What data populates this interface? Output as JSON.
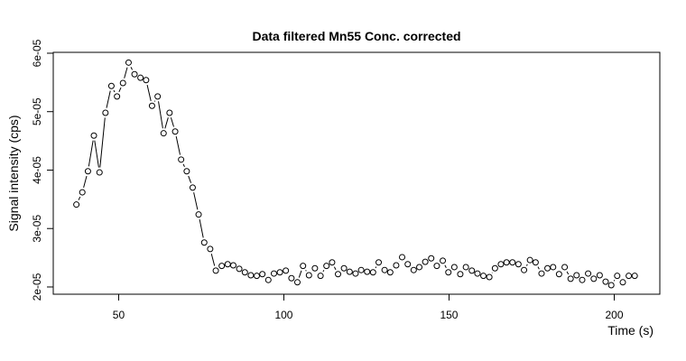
{
  "chart_data": {
    "type": "line",
    "title": "Data filtered Mn55 Conc. corrected",
    "x_label": "Time (s)",
    "y_label": "Signal intensity (cps)",
    "color": "#000000",
    "xlim": [
      30.2,
      213.8
    ],
    "ylim": [
      1.876e-05,
      6.015e-05
    ],
    "xticks": [
      50,
      100,
      150,
      200
    ],
    "yticks": [
      {
        "value": 2e-05,
        "label": "2e-05"
      },
      {
        "value": 3e-05,
        "label": "3e-05"
      },
      {
        "value": 4e-05,
        "label": "4e-05"
      },
      {
        "value": 5e-05,
        "label": "5e-05"
      },
      {
        "value": 6e-05,
        "label": "6e-05"
      }
    ],
    "x": [
      37.2,
      39.0,
      40.7,
      42.5,
      44.2,
      46.0,
      47.8,
      49.5,
      51.3,
      53.0,
      54.8,
      56.6,
      58.3,
      60.1,
      61.8,
      63.6,
      65.4,
      67.1,
      68.9,
      70.6,
      72.4,
      74.2,
      75.9,
      77.7,
      79.4,
      81.2,
      83.0,
      84.7,
      86.5,
      88.2,
      90.0,
      91.8,
      93.5,
      95.3,
      97.0,
      98.8,
      100.6,
      102.3,
      104.1,
      105.8,
      107.6,
      109.4,
      111.1,
      112.9,
      114.6,
      116.4,
      118.2,
      119.9,
      121.7,
      123.4,
      125.2,
      127.0,
      128.7,
      130.5,
      132.2,
      134.0,
      135.8,
      137.5,
      139.3,
      141.0,
      142.8,
      144.6,
      146.3,
      148.1,
      149.8,
      151.6,
      153.4,
      155.1,
      156.9,
      158.6,
      160.4,
      162.2,
      163.9,
      165.7,
      167.4,
      169.2,
      171.0,
      172.7,
      174.5,
      176.2,
      178.0,
      179.8,
      181.5,
      183.3,
      185.0,
      186.8,
      188.6,
      190.3,
      192.1,
      193.8,
      195.6,
      197.4,
      199.1,
      200.9,
      202.6,
      204.4,
      206.2
    ],
    "series": [
      {
        "name": "Mn55",
        "values": [
          3.41e-05,
          3.62e-05,
          3.98e-05,
          4.59e-05,
          3.96e-05,
          4.98e-05,
          5.44e-05,
          5.26e-05,
          5.49e-05,
          5.84e-05,
          5.64e-05,
          5.58e-05,
          5.54e-05,
          5.1e-05,
          5.26e-05,
          4.63e-05,
          4.98e-05,
          4.66e-05,
          4.18e-05,
          3.98e-05,
          3.7e-05,
          3.24e-05,
          2.76e-05,
          2.65e-05,
          2.28e-05,
          2.36e-05,
          2.39e-05,
          2.37e-05,
          2.31e-05,
          2.25e-05,
          2.2e-05,
          2.19e-05,
          2.22e-05,
          2.12e-05,
          2.23e-05,
          2.25e-05,
          2.28e-05,
          2.15e-05,
          2.08e-05,
          2.36e-05,
          2.2e-05,
          2.32e-05,
          2.19e-05,
          2.36e-05,
          2.42e-05,
          2.22e-05,
          2.32e-05,
          2.26e-05,
          2.23e-05,
          2.29e-05,
          2.26e-05,
          2.25e-05,
          2.42e-05,
          2.29e-05,
          2.25e-05,
          2.37e-05,
          2.51e-05,
          2.39e-05,
          2.29e-05,
          2.34e-05,
          2.43e-05,
          2.49e-05,
          2.36e-05,
          2.45e-05,
          2.25e-05,
          2.34e-05,
          2.22e-05,
          2.34e-05,
          2.28e-05,
          2.23e-05,
          2.19e-05,
          2.17e-05,
          2.32e-05,
          2.39e-05,
          2.42e-05,
          2.42e-05,
          2.39e-05,
          2.29e-05,
          2.46e-05,
          2.42e-05,
          2.23e-05,
          2.32e-05,
          2.34e-05,
          2.22e-05,
          2.34e-05,
          2.14e-05,
          2.2e-05,
          2.12e-05,
          2.23e-05,
          2.14e-05,
          2.2e-05,
          2.09e-05,
          2.03e-05,
          2.19e-05,
          2.08e-05,
          2.19e-05,
          2.19e-05
        ]
      }
    ]
  }
}
